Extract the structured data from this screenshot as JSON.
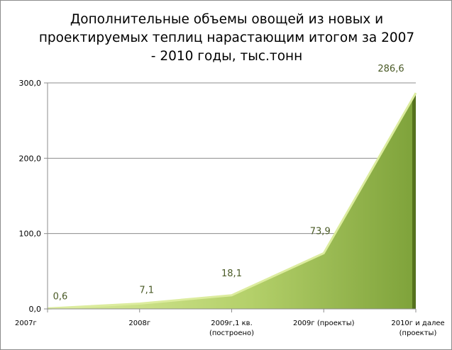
{
  "chart_data": {
    "type": "area",
    "title": "Дополнительные объемы овощей из новых и проектируемых теплиц нарастающим итогом за 2007 - 2010 годы, тыс.тонн",
    "title_lines": [
      "Дополнительные объемы овощей из новых и",
      "проектируемых теплиц нарастающим итогом за 2007",
      "- 2010 годы, тыс.тонн"
    ],
    "categories": [
      [
        "2007г"
      ],
      [
        "2008г"
      ],
      [
        "2009г,1 кв.",
        "(построено)"
      ],
      [
        "2009г (проекты)"
      ],
      [
        "2010г и далее",
        "(проекты)"
      ]
    ],
    "values": [
      0.6,
      7.1,
      18.1,
      73.9,
      286.6
    ],
    "data_labels": [
      "0,6",
      "7,1",
      "18,1",
      "73,9",
      "286,6"
    ],
    "y_ticks": [
      0,
      100,
      200,
      300
    ],
    "y_tick_labels": [
      "0,0",
      "100,0",
      "200,0",
      "300,0"
    ],
    "ylim": [
      0,
      300
    ],
    "grid": true,
    "legend": "none",
    "colors": {
      "fill_light": "#dcec9e",
      "fill_mid": "#b4d06a",
      "fill_dark": "#7ea23a",
      "edge_shadow": "#4d6a1a",
      "gridline": "#8c8c8c",
      "axis": "#8c8c8c",
      "label_text": "#4a5a26"
    }
  }
}
